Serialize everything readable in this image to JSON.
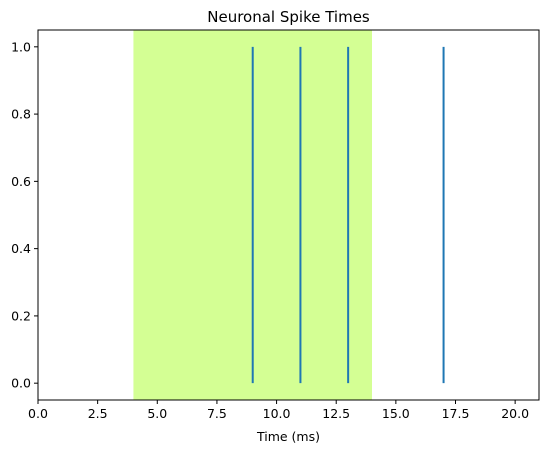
{
  "chart_data": {
    "type": "eventplot",
    "title": "Neuronal Spike Times",
    "xlabel": "Time (ms)",
    "ylabel": "",
    "xlim": [
      0,
      21
    ],
    "ylim": [
      -0.05,
      1.05
    ],
    "x_ticks": [
      0,
      2.5,
      5,
      7.5,
      10,
      12.5,
      15,
      17.5,
      20
    ],
    "x_tick_labels": [
      "0.0",
      "2.5",
      "5.0",
      "7.5",
      "10.0",
      "12.5",
      "15.0",
      "17.5",
      "20.0"
    ],
    "y_ticks": [
      0,
      0.2,
      0.4,
      0.6,
      0.8,
      1.0
    ],
    "y_tick_labels": [
      "0.0",
      "0.2",
      "0.4",
      "0.6",
      "0.8",
      "1.0"
    ],
    "spikes": [
      9,
      11,
      13,
      17
    ],
    "spike_y_range": [
      0,
      1
    ],
    "highlight_span": {
      "x": [
        4,
        14
      ],
      "color": "#d4ff94"
    },
    "spike_color": "#1f77b4",
    "grid": false,
    "legend": "none"
  }
}
